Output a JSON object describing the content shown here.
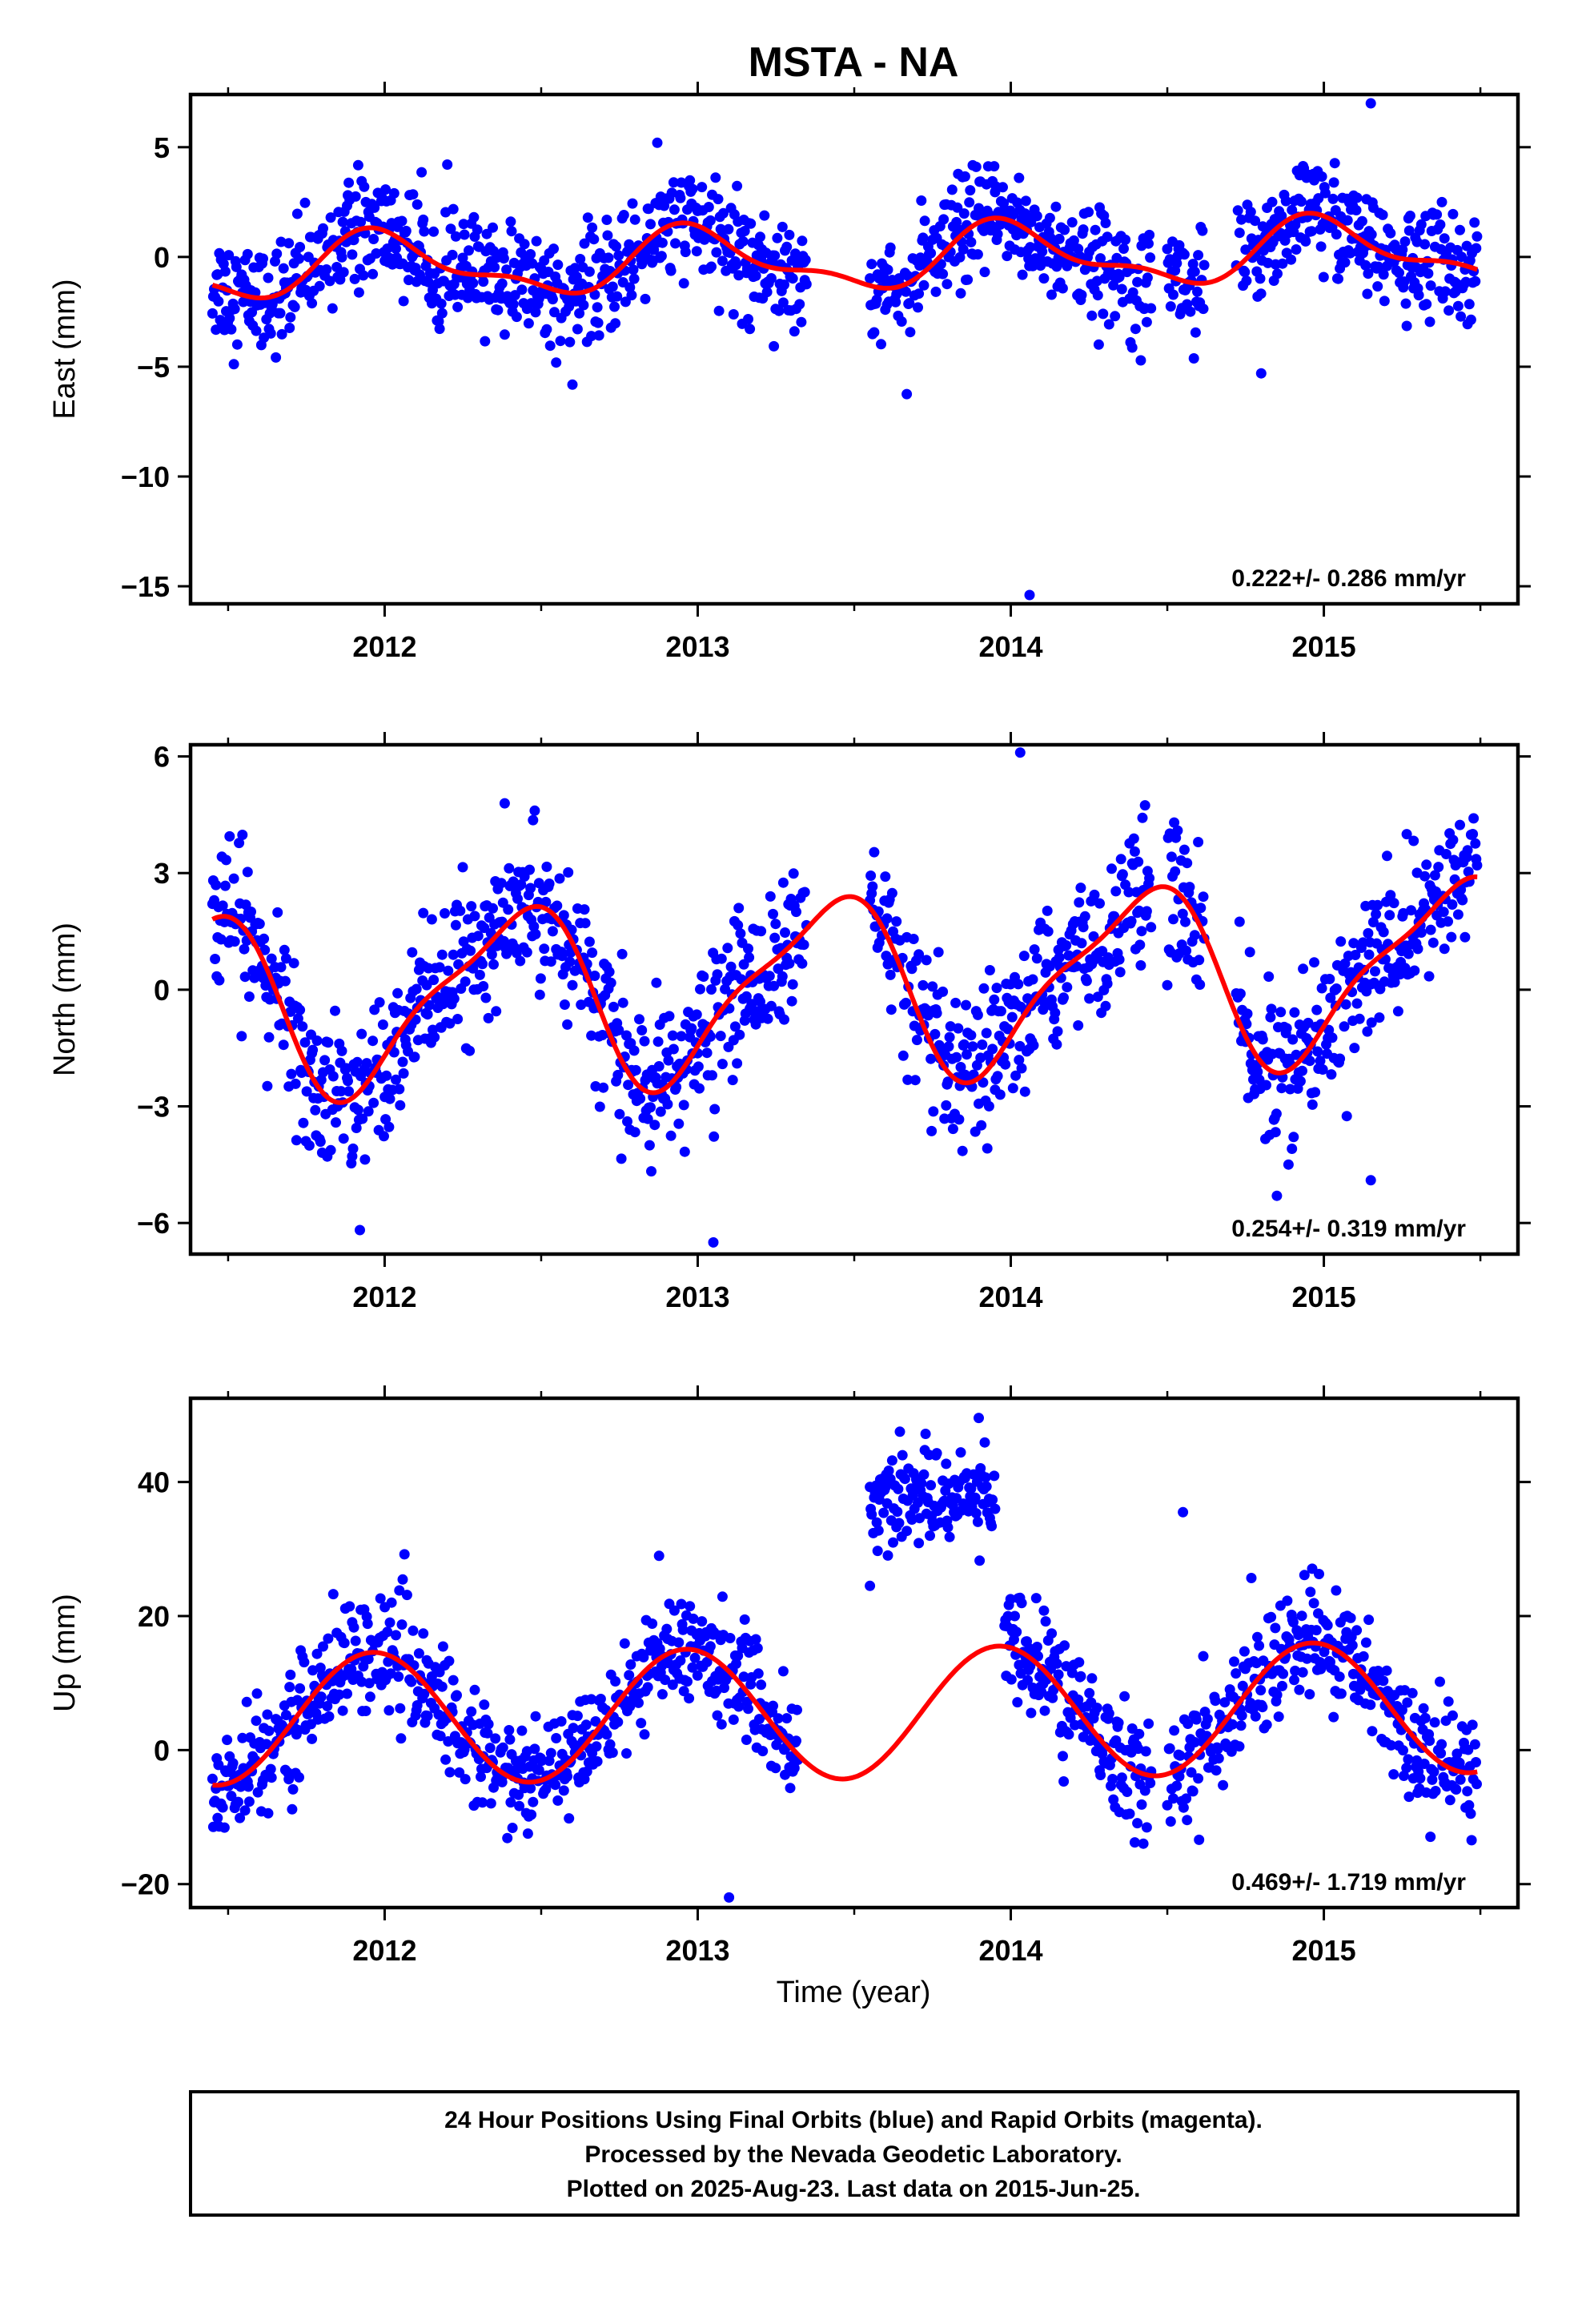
{
  "title": "MSTA - NA",
  "x_label": "Time (year)",
  "footer": {
    "line1": "24 Hour Positions Using Final Orbits (blue) and Rapid Orbits (magenta).",
    "line2": "Processed by the Nevada Geodetic Laboratory.",
    "line3": "Plotted on 2025-Aug-23. Last data on 2015-Jun-25."
  },
  "colors": {
    "points": "#0000ff",
    "fit": "#ff0000",
    "frame": "#000000"
  },
  "chart_data": [
    {
      "type": "scatter",
      "ylabel": "East (mm)",
      "rate_label": "0.222+/- 0.286 mm/yr",
      "xlim": [
        2011.38,
        2015.62
      ],
      "ylim": [
        -15.8,
        7.4
      ],
      "x_ticks": [
        2012,
        2013,
        2014,
        2015
      ],
      "y_ticks": [
        5,
        0,
        -5,
        -10,
        -15
      ],
      "model": {
        "offset": -0.1,
        "rate": 0.222,
        "annual_amp": 1.3,
        "annual_phase": 1.6,
        "semi_amp": 0.55,
        "semi_phase": 2.5,
        "noise": 1.25,
        "ref_year": 2013.5
      },
      "segments": [
        [
          2011.45,
          2013.35
        ],
        [
          2013.55,
          2014.45
        ],
        [
          2014.5,
          2014.62
        ],
        [
          2014.72,
          2015.49
        ]
      ],
      "outliers": [
        {
          "x": 2014.06,
          "y": -15.4
        },
        {
          "x": 2014.8,
          "y": -5.3
        },
        {
          "x": 2015.15,
          "y": 7.0
        }
      ]
    },
    {
      "type": "scatter",
      "ylabel": "North (mm)",
      "rate_label": "0.254+/- 0.319 mm/yr",
      "xlim": [
        2011.38,
        2015.62
      ],
      "ylim": [
        -6.8,
        6.3
      ],
      "x_ticks": [
        2012,
        2013,
        2014,
        2015
      ],
      "y_ticks": [
        6,
        3,
        0,
        -3,
        -6
      ],
      "model": {
        "offset": 0.1,
        "rate": 0.254,
        "annual_amp": 2.2,
        "annual_phase": -1.0,
        "semi_amp": 0.6,
        "semi_phase": 0.8,
        "noise": 0.95,
        "ref_year": 2013.5
      },
      "segments": [
        [
          2011.45,
          2013.35
        ],
        [
          2013.55,
          2014.45
        ],
        [
          2014.5,
          2014.62
        ],
        [
          2014.72,
          2015.49
        ]
      ],
      "outliers": [
        {
          "x": 2014.03,
          "y": 6.1
        },
        {
          "x": 2013.05,
          "y": -6.5
        },
        {
          "x": 2014.85,
          "y": -5.3
        },
        {
          "x": 2015.15,
          "y": -4.9
        }
      ]
    },
    {
      "type": "scatter",
      "ylabel": "Up (mm)",
      "rate_label": "0.469+/- 1.719 mm/yr",
      "xlim": [
        2011.38,
        2015.62
      ],
      "ylim": [
        -23.5,
        52.5
      ],
      "x_ticks": [
        2012,
        2013,
        2014,
        2015
      ],
      "y_ticks": [
        40,
        20,
        0,
        -20
      ],
      "model": {
        "offset": 5.5,
        "rate": 0.469,
        "annual_amp": 9.8,
        "annual_phase": 1.8,
        "semi_amp": 0.0,
        "semi_phase": 0.0,
        "noise": 4.3,
        "ref_year": 2013.5
      },
      "segments": [
        [
          2011.45,
          2013.32
        ],
        [
          2013.98,
          2014.45
        ],
        [
          2014.5,
          2015.49
        ]
      ],
      "offset_cluster": {
        "x_range": [
          2013.55,
          2013.95
        ],
        "mean": 38,
        "spread": 3.5
      },
      "outliers": [
        {
          "x": 2014.55,
          "y": 35.5
        },
        {
          "x": 2013.1,
          "y": -22.0
        },
        {
          "x": 2013.55,
          "y": 24.5
        }
      ]
    }
  ]
}
